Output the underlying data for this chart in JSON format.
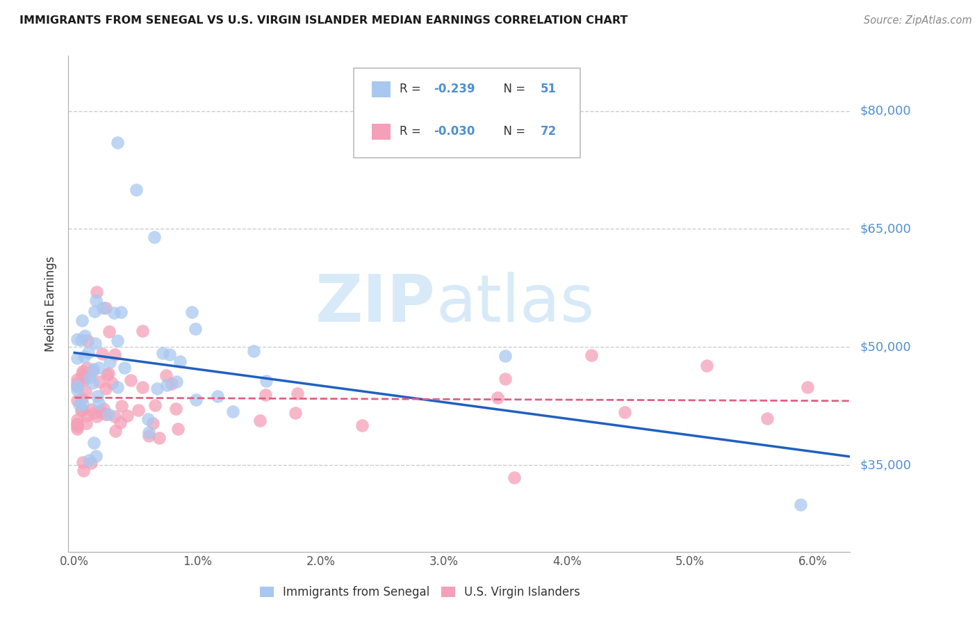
{
  "title": "IMMIGRANTS FROM SENEGAL VS U.S. VIRGIN ISLANDER MEDIAN EARNINGS CORRELATION CHART",
  "source": "Source: ZipAtlas.com",
  "ylabel": "Median Earnings",
  "xlabel_ticks": [
    "0.0%",
    "1.0%",
    "2.0%",
    "3.0%",
    "4.0%",
    "5.0%",
    "6.0%"
  ],
  "ytick_labels": [
    "$35,000",
    "$50,000",
    "$65,000",
    "$80,000"
  ],
  "ytick_vals": [
    35000,
    50000,
    65000,
    80000
  ],
  "ymin": 24000,
  "ymax": 87000,
  "xmin": -0.05,
  "xmax": 6.3,
  "blue_color": "#a8c8f0",
  "pink_color": "#f4a0b8",
  "blue_line_color": "#2060c0",
  "pink_line_color": "#e06080",
  "grid_color": "#cccccc",
  "right_label_color": "#5090d0",
  "title_color": "#1a1a1a",
  "watermark_color": "#d8eaf8",
  "legend_blue_label": "Immigrants from Senegal",
  "legend_pink_label": "U.S. Virgin Islanders",
  "R_text_color": "#333333",
  "R_val_color": "#e06080",
  "N_val_color": "#2060c0"
}
